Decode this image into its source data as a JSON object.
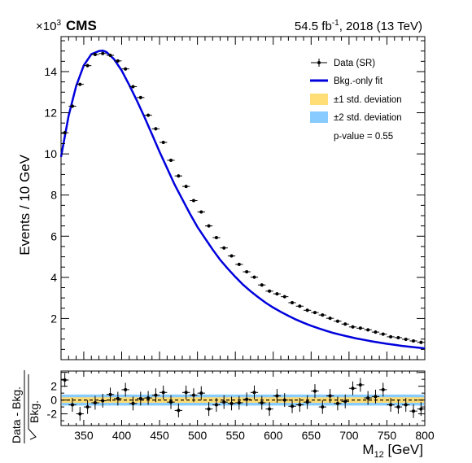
{
  "chart_data": [
    {
      "type": "scatter",
      "experiment": "CMS",
      "lumi_label": "54.5 fb",
      "lumi_sup": "-1",
      "lumi_suffix": ", 2018 (13 TeV)",
      "multiplier": "×10",
      "multiplier_exp": "3",
      "ylabel": "Events / 10 GeV",
      "xlim": [
        320,
        800
      ],
      "ylim": [
        0,
        15.7
      ],
      "yticks": [
        2,
        4,
        6,
        8,
        10,
        12,
        14
      ],
      "grid": false,
      "legend_position": "top-right",
      "legend": {
        "data": "Data (SR)",
        "fit": "Bkg.-only fit",
        "band1": "±1 std. deviation",
        "band2": "±2 std. deviation",
        "pvalue": "p-value = 0.55"
      },
      "colors": {
        "fit": "#0000dd",
        "band1": "#ffdd77",
        "band2": "#88ccff",
        "data": "#000000"
      },
      "x": [
        325,
        335,
        345,
        355,
        365,
        375,
        385,
        395,
        405,
        415,
        425,
        435,
        445,
        455,
        465,
        475,
        485,
        495,
        505,
        515,
        525,
        535,
        545,
        555,
        565,
        575,
        585,
        595,
        605,
        615,
        625,
        635,
        645,
        655,
        665,
        675,
        685,
        695,
        705,
        715,
        725,
        735,
        745,
        755,
        765,
        775,
        785,
        795
      ],
      "series": [
        {
          "name": "Data (SR)",
          "values": [
            11.03,
            12.32,
            13.38,
            14.29,
            14.83,
            14.88,
            14.79,
            14.52,
            14.13,
            13.27,
            12.74,
            11.88,
            11.22,
            10.56,
            9.69,
            8.93,
            8.42,
            7.73,
            7.18,
            6.5,
            5.93,
            5.43,
            5.04,
            4.63,
            4.27,
            4.01,
            3.63,
            3.33,
            3.2,
            3.06,
            2.77,
            2.6,
            2.4,
            2.29,
            2.17,
            2.01,
            1.87,
            1.73,
            1.59,
            1.53,
            1.45,
            1.34,
            1.24,
            1.11,
            1.07,
            0.99,
            0.91,
            0.84
          ]
        },
        {
          "name": "Bkg.-only fit",
          "x": [
            320,
            330,
            340,
            350,
            360,
            370,
            375,
            380,
            390,
            400,
            410,
            420,
            430,
            440,
            450,
            460,
            470,
            480,
            490,
            500,
            510,
            520,
            530,
            540,
            550,
            560,
            570,
            580,
            590,
            600,
            610,
            620,
            630,
            640,
            650,
            660,
            670,
            680,
            690,
            700,
            710,
            720,
            730,
            740,
            750,
            760,
            770,
            780,
            790,
            800
          ],
          "values": [
            9.85,
            11.85,
            13.3,
            14.3,
            14.85,
            15.0,
            15.02,
            14.95,
            14.6,
            14.05,
            13.35,
            12.6,
            11.8,
            10.95,
            10.1,
            9.3,
            8.5,
            7.8,
            7.1,
            6.45,
            5.9,
            5.35,
            4.85,
            4.42,
            4.02,
            3.65,
            3.33,
            3.04,
            2.77,
            2.53,
            2.32,
            2.13,
            1.95,
            1.79,
            1.65,
            1.52,
            1.4,
            1.29,
            1.2,
            1.11,
            1.03,
            0.96,
            0.89,
            0.83,
            0.77,
            0.72,
            0.67,
            0.63,
            0.59,
            0.55
          ]
        }
      ]
    },
    {
      "type": "scatter",
      "ylabel_num": "Data - Bkg.",
      "ylabel_den": "Bkg.",
      "xlabel_main": "M",
      "xlabel_sub": "12",
      "xlabel_unit": " [GeV]",
      "xlim": [
        320,
        800
      ],
      "ylim": [
        -3.7,
        4.2
      ],
      "yticks": [
        -2,
        0,
        2
      ],
      "xticks": [
        350,
        400,
        450,
        500,
        550,
        600,
        650,
        700,
        750,
        800
      ],
      "x": [
        325,
        335,
        345,
        355,
        365,
        375,
        385,
        395,
        405,
        415,
        425,
        435,
        445,
        455,
        465,
        475,
        485,
        495,
        505,
        515,
        525,
        535,
        545,
        555,
        565,
        575,
        585,
        595,
        605,
        615,
        625,
        635,
        645,
        655,
        665,
        675,
        685,
        695,
        705,
        715,
        725,
        735,
        745,
        755,
        765,
        775,
        785,
        795
      ],
      "values": [
        2.9,
        -0.7,
        -2.0,
        -1.0,
        -0.4,
        -0.1,
        0.8,
        0.2,
        1.5,
        -0.5,
        0.2,
        0.3,
        0.7,
        1.1,
        -0.3,
        -1.5,
        1.1,
        0.7,
        1.0,
        -1.3,
        -0.7,
        -0.3,
        -0.5,
        -0.4,
        0.1,
        1.1,
        -0.4,
        -1.3,
        0.6,
        0.0,
        -0.9,
        -0.7,
        -0.3,
        1.3,
        -1.0,
        0.6,
        -0.5,
        -0.2,
        1.7,
        2.2,
        0.3,
        0.5,
        1.5,
        -0.7,
        -1.0,
        -0.7,
        -1.6,
        -1.3
      ],
      "band1": 0.4,
      "band2": 0.8
    }
  ]
}
